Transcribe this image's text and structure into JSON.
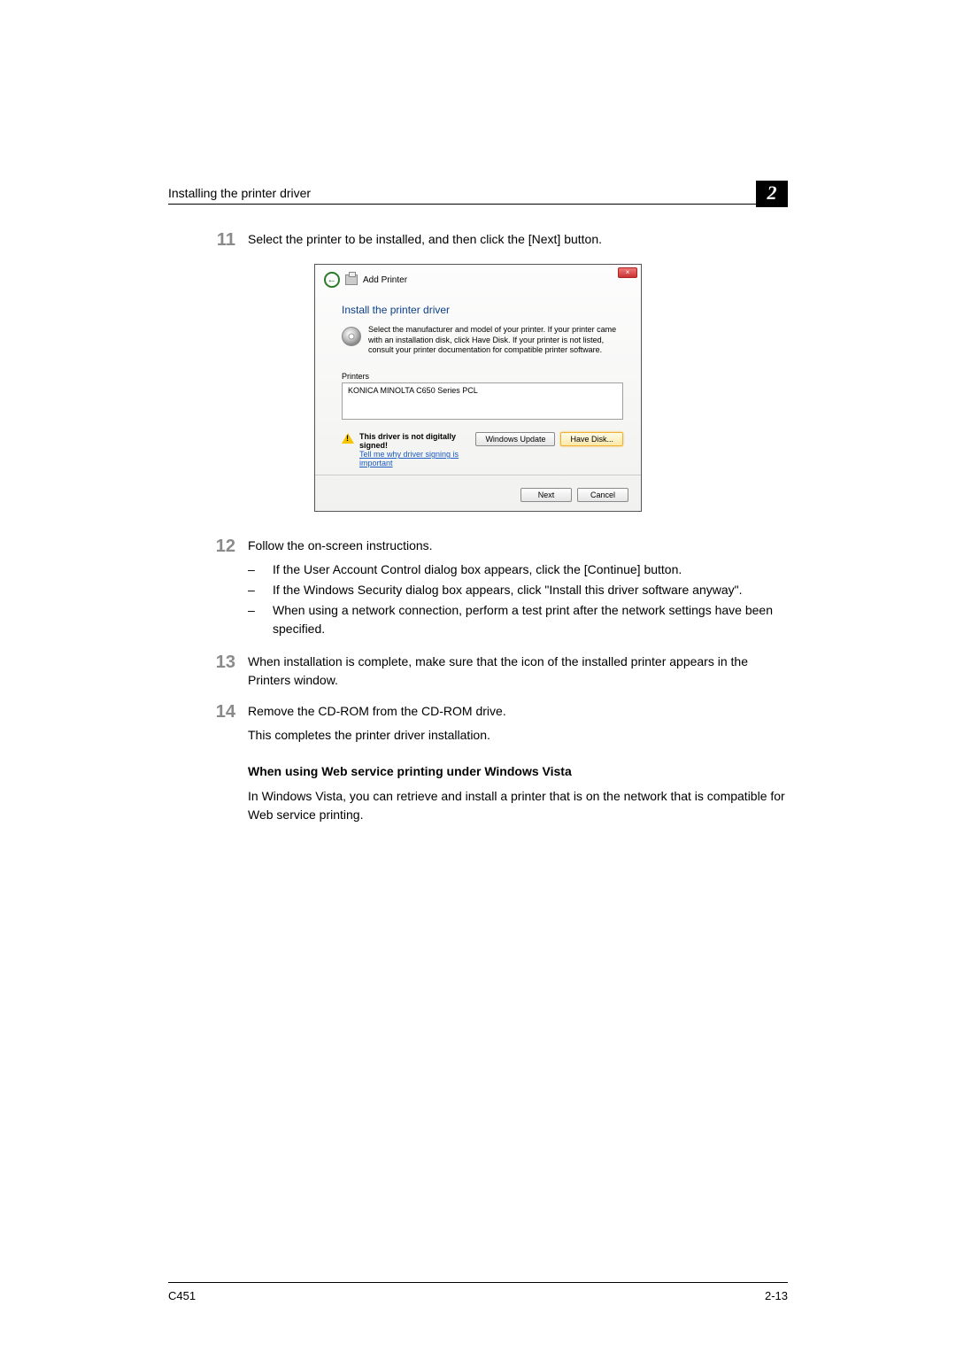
{
  "header": {
    "title": "Installing the printer driver",
    "chapter": "2"
  },
  "steps": {
    "s11": {
      "num": "11",
      "text": "Select the printer to be installed, and then click the [Next] button."
    },
    "s12": {
      "num": "12",
      "text": "Follow the on-screen instructions.",
      "bullets": {
        "b1": "If the User Account Control dialog box appears, click the [Continue] button.",
        "b2": "If the Windows Security dialog box appears, click \"Install this driver software anyway\".",
        "b3": "When using a network connection, perform a test print after the network settings have been specified."
      }
    },
    "s13": {
      "num": "13",
      "text": "When installation is complete, make sure that the icon of the installed printer appears in the Printers window."
    },
    "s14": {
      "num": "14",
      "text": "Remove the CD-ROM from the CD-ROM drive.",
      "extra": "This completes the printer driver installation."
    }
  },
  "dialog": {
    "close_glyph": "×",
    "back_glyph": "←",
    "breadcrumb": "Add Printer",
    "title": "Install the printer driver",
    "instruction": "Select the manufacturer and model of your printer. If your printer came with an installation disk, click Have Disk. If your printer is not listed, consult your printer documentation for compatible printer software.",
    "printers_label": "Printers",
    "printer_item": "KONICA MINOLTA C650 Series PCL",
    "warning_bold": "This driver is not digitally signed!",
    "warning_link": "Tell me why driver signing is important",
    "windows_update_btn": "Windows Update",
    "have_disk_btn": "Have Disk...",
    "next_btn": "Next",
    "cancel_btn": "Cancel"
  },
  "section": {
    "title": "When using Web service printing under Windows Vista",
    "body": "In Windows Vista, you can retrieve and install a printer that is on the network that is compatible for Web service printing."
  },
  "footer": {
    "left": "C451",
    "right": "2-13"
  },
  "dash": "–"
}
